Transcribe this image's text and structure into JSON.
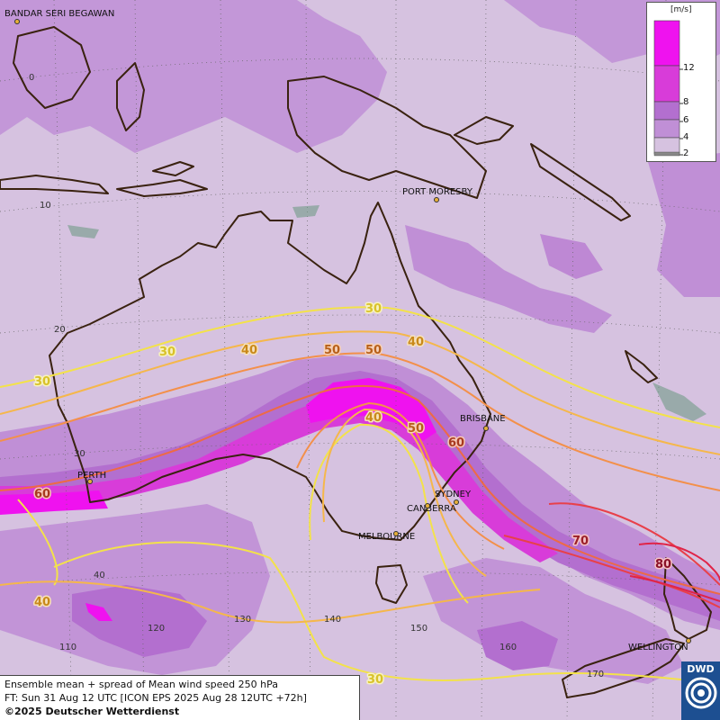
{
  "map": {
    "cities": [
      {
        "id": "bandar",
        "name": "BANDAR SERI BEGAWAN"
      },
      {
        "id": "port-moresby",
        "name": "PORT MORESBY"
      },
      {
        "id": "brisbane",
        "name": "BRISBANE"
      },
      {
        "id": "sydney",
        "name": "SYDNEY"
      },
      {
        "id": "canberra",
        "name": "CANBERRA"
      },
      {
        "id": "melbourne",
        "name": "MELBOURNE"
      },
      {
        "id": "perth",
        "name": "PERTH"
      },
      {
        "id": "wellington",
        "name": "WELLINGTON"
      }
    ],
    "latitude_labels": [
      "0",
      "10",
      "20",
      "30",
      "40"
    ],
    "longitude_labels": [
      "110",
      "120",
      "130",
      "140",
      "150",
      "160",
      "170"
    ],
    "contour_labels": {
      "c30_a": "30",
      "c30_b": "30",
      "c30_c": "30",
      "c30_d": "30",
      "c40_a": "40",
      "c40_b": "40",
      "c40_c": "40",
      "c40_d": "40",
      "c50_a": "50",
      "c50_b": "50",
      "c50_c": "50",
      "c60_a": "60",
      "c60_b": "60",
      "c70": "70",
      "c80": "80"
    },
    "colors": {
      "background": "#d6c2e0",
      "spread_4_6": "#c08fd6",
      "spread_6_8": "#b36fcf",
      "spread_8_12": "#d83cd9",
      "spread_12plus": "#ef12ef",
      "c30": "#f3e24a",
      "c40": "#f5b74b",
      "c50": "#f3904a",
      "c60": "#ee6a45",
      "c70": "#e8404a",
      "c80": "#e02448",
      "coast": "#3a2210"
    }
  },
  "legend": {
    "unit": "[m/s]",
    "ticks": [
      "12",
      "8",
      "6",
      "4",
      "2"
    ]
  },
  "info": {
    "line1": "Ensemble mean + spread of Mean wind speed 250 hPa",
    "line2": "FT: Sun 31 Aug 12 UTC [ICON EPS 2025 Aug 28 12UTC +72h]",
    "copyright": "©2025 Deutscher Wetterdienst"
  },
  "logo": {
    "text": "DWD",
    "icon": "dwd-swirl-icon"
  }
}
